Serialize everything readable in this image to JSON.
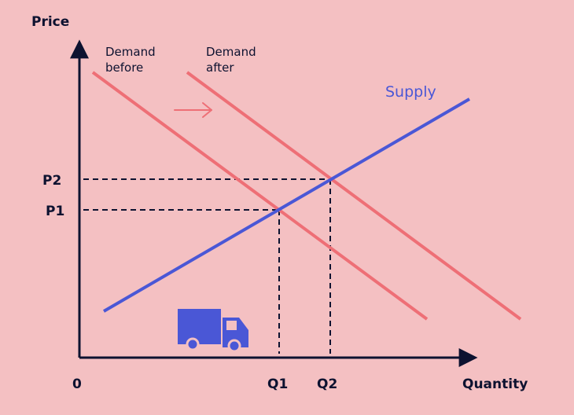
{
  "colors": {
    "background": "#f4c0c2",
    "axis": "#0d1230",
    "demand": "#ee6f76",
    "supply": "#4a57d6",
    "truck": "#4a57d6"
  },
  "labels": {
    "y_axis": "Price",
    "x_axis": "Quantity",
    "origin": "0",
    "p1": "P1",
    "p2": "P2",
    "q1": "Q1",
    "q2": "Q2",
    "supply": "Supply",
    "demand_before_line1": "Demand",
    "demand_before_line2": "before",
    "demand_after_line1": "Demand",
    "demand_after_line2": "after"
  },
  "icons": {
    "shift_arrow": "arrow-right-icon",
    "truck": "truck-icon"
  }
}
